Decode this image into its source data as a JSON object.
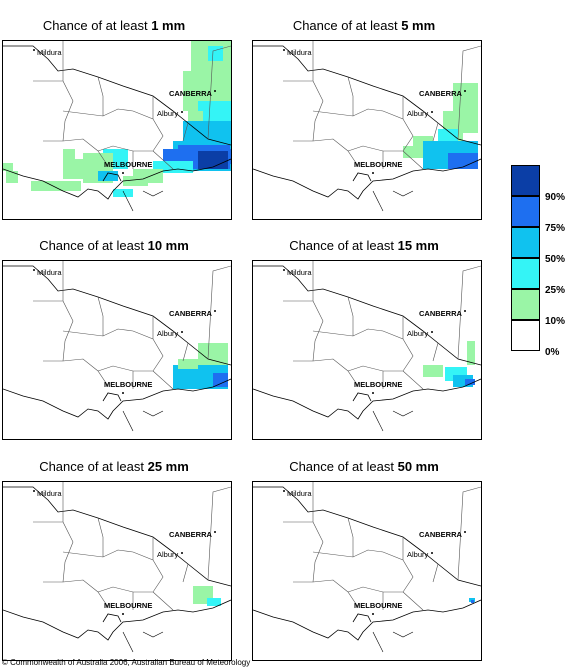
{
  "panels": [
    {
      "title_prefix": "Chance of at least ",
      "amount": "1 mm"
    },
    {
      "title_prefix": "Chance of at least ",
      "amount": "5 mm"
    },
    {
      "title_prefix": "Chance of at least ",
      "amount": "10 mm"
    },
    {
      "title_prefix": "Chance of at least ",
      "amount": "15 mm"
    },
    {
      "title_prefix": "Chance of at least ",
      "amount": "25 mm"
    },
    {
      "title_prefix": "Chance of at least ",
      "amount": "50 mm"
    }
  ],
  "places": {
    "mildura": "Mildura",
    "canberra": "CANBERRA",
    "albury": "Albury",
    "melbourne": "MELBOURNE"
  },
  "legend": {
    "labels": [
      "90%",
      "75%",
      "50%",
      "25%",
      "10%",
      "0%"
    ],
    "colors": [
      "#0b3ea6",
      "#1e6ff0",
      "#10c2ef",
      "#34f4f6",
      "#9af5a6",
      "#ffffff"
    ]
  },
  "copyright": "© Commonwealth of Australia 2006, Australian Bureau of Meteorology"
}
